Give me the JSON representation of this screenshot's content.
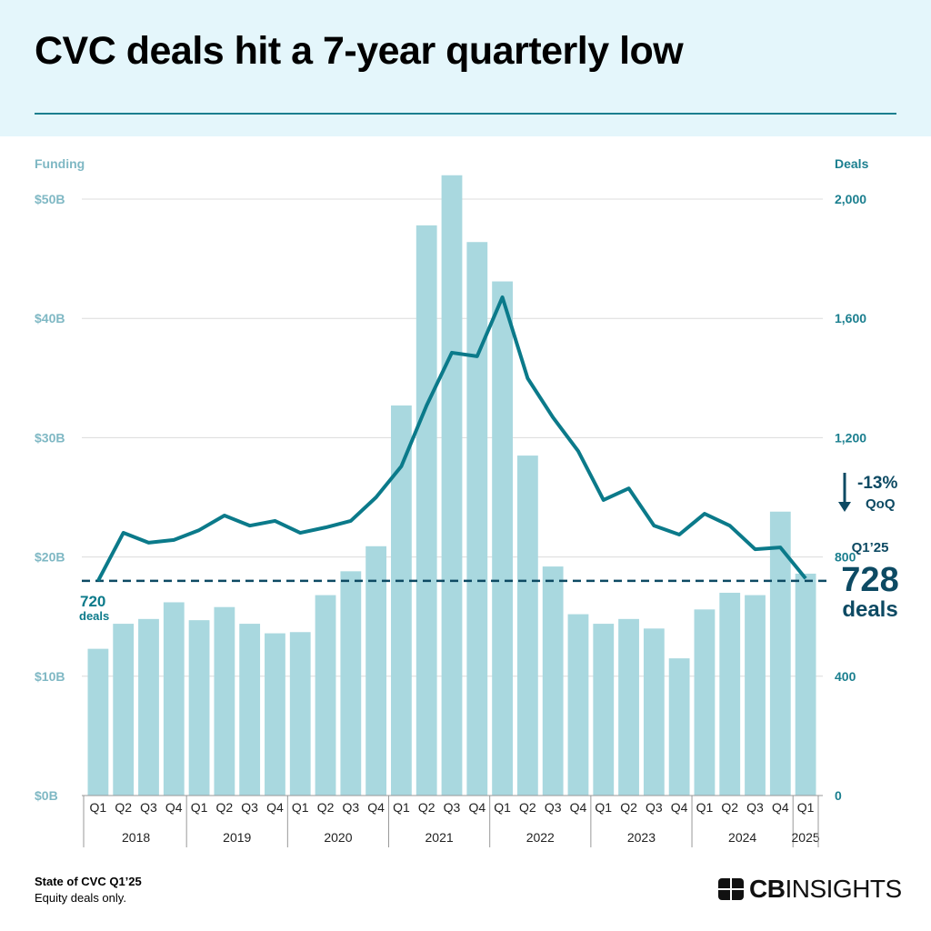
{
  "title": "CVC deals hit a 7-year quarterly low",
  "footer": {
    "source": "State of CVC Q1’25",
    "note": "Equity deals only."
  },
  "logo": {
    "bold": "CB",
    "light": "INSIGHTS"
  },
  "colors": {
    "bars": "#a9d8df",
    "line": "#0b7a8a",
    "left_axis": "#7fb8c4",
    "right_axis": "#1b7f8f",
    "annotation": "#0d4a63"
  },
  "chart_data": {
    "type": "bar+line",
    "left_axis": {
      "label": "Funding",
      "ticks": [
        "$0B",
        "$10B",
        "$20B",
        "$30B",
        "$40B",
        "$50B"
      ],
      "range": [
        0,
        50
      ],
      "unit": "$B"
    },
    "right_axis": {
      "label": "Deals",
      "ticks": [
        "0",
        "400",
        "800",
        "1,200",
        "1,600",
        "2,000"
      ],
      "range": [
        0,
        2000
      ]
    },
    "grid": true,
    "quarters": [
      "Q1",
      "Q2",
      "Q3",
      "Q4",
      "Q1",
      "Q2",
      "Q3",
      "Q4",
      "Q1",
      "Q2",
      "Q3",
      "Q4",
      "Q1",
      "Q2",
      "Q3",
      "Q4",
      "Q1",
      "Q2",
      "Q3",
      "Q4",
      "Q1",
      "Q2",
      "Q3",
      "Q4",
      "Q1",
      "Q2",
      "Q3",
      "Q4",
      "Q1"
    ],
    "years": [
      {
        "label": "2018",
        "count": 4
      },
      {
        "label": "2019",
        "count": 4
      },
      {
        "label": "2020",
        "count": 4
      },
      {
        "label": "2021",
        "count": 4
      },
      {
        "label": "2022",
        "count": 4
      },
      {
        "label": "2023",
        "count": 4
      },
      {
        "label": "2024",
        "count": 4
      },
      {
        "label": "2025",
        "count": 1
      }
    ],
    "series": [
      {
        "type": "bar",
        "axis": "left",
        "values": [
          12.3,
          14.4,
          14.8,
          16.2,
          14.7,
          15.8,
          14.4,
          13.6,
          13.7,
          16.8,
          18.8,
          20.9,
          32.7,
          47.8,
          52.0,
          46.4,
          43.1,
          28.5,
          19.2,
          15.2,
          14.4,
          14.8,
          14.0,
          11.5,
          15.6,
          17.0,
          16.8,
          23.8,
          18.6
        ]
      },
      {
        "type": "line",
        "axis": "right",
        "values": [
          720,
          881,
          848,
          857,
          890,
          939,
          905,
          921,
          881,
          899,
          921,
          1000,
          1104,
          1308,
          1485,
          1473,
          1671,
          1399,
          1268,
          1155,
          991,
          1030,
          905,
          875,
          945,
          905,
          826,
          832,
          728
        ]
      }
    ],
    "reference_line": {
      "value": 720,
      "style": "dashed",
      "label_value": "720",
      "label_unit": "deals"
    },
    "annotations": {
      "change": "-13%",
      "change_unit": "QoQ",
      "period": "Q1’25",
      "value": "728",
      "value_unit": "deals"
    }
  }
}
